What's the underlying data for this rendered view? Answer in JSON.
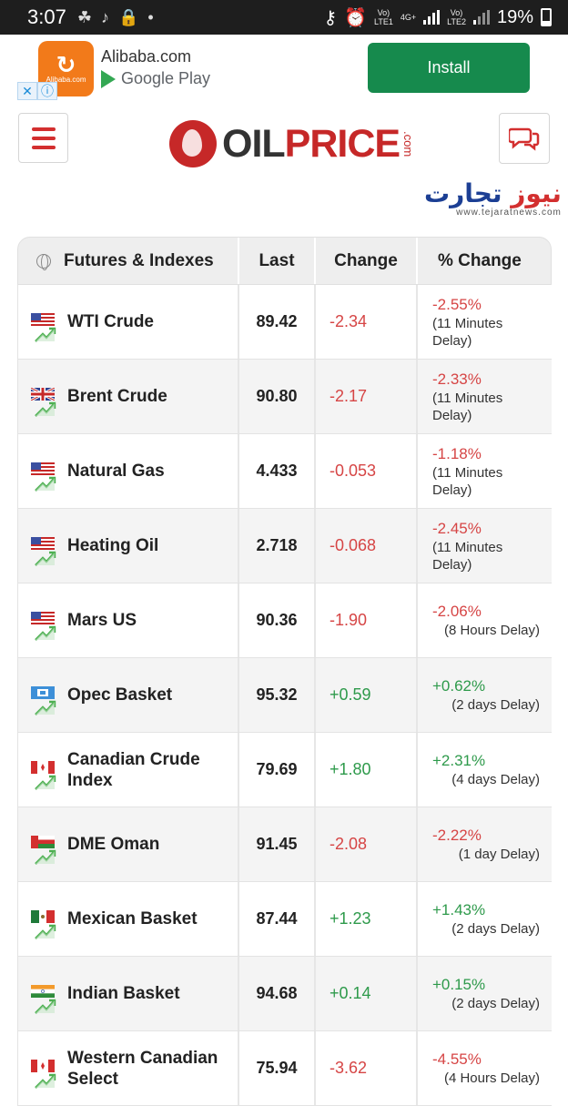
{
  "status_bar": {
    "time": "3:07",
    "battery": "19%",
    "net1": "Vo)\nLTE1",
    "net_type": "4G+",
    "net2": "Vo)\nLTE2"
  },
  "ad": {
    "app_name": "Alibaba.com",
    "store": "Google Play",
    "install_label": "Install",
    "logo_label": "Alibaba.com"
  },
  "header": {
    "logo_oil": "OIL",
    "logo_price": "PRICE",
    "logo_com": ".com",
    "watermark_fa": "تجارت",
    "watermark_fa_red": "نیوز",
    "watermark_site": "www.tejaratnews.com"
  },
  "table": {
    "headers": [
      "Futures & Indexes",
      "Last",
      "Change",
      "% Change"
    ],
    "rows": [
      {
        "name": "WTI Crude",
        "last": "89.42",
        "change": "-2.34",
        "pct": "-2.55%",
        "delay": "(11 Minutes Delay)",
        "flag": "us",
        "dir": "neg"
      },
      {
        "name": "Brent Crude",
        "last": "90.80",
        "change": "-2.17",
        "pct": "-2.33%",
        "delay": "(11 Minutes Delay)",
        "flag": "uk",
        "dir": "neg"
      },
      {
        "name": "Natural Gas",
        "last": "4.433",
        "change": "-0.053",
        "pct": "-1.18%",
        "delay": "(11 Minutes Delay)",
        "flag": "us",
        "dir": "neg"
      },
      {
        "name": "Heating Oil",
        "last": "2.718",
        "change": "-0.068",
        "pct": "-2.45%",
        "delay": "(11 Minutes Delay)",
        "flag": "us",
        "dir": "neg"
      },
      {
        "name": "Mars US",
        "last": "90.36",
        "change": "-1.90",
        "pct": "-2.06%",
        "delay": "(8 Hours Delay)",
        "flag": "us",
        "dir": "neg"
      },
      {
        "name": "Opec Basket",
        "last": "95.32",
        "change": "+0.59",
        "pct": "+0.62%",
        "delay": "(2 days Delay)",
        "flag": "opec",
        "dir": "pos"
      },
      {
        "name": "Canadian Crude Index",
        "last": "79.69",
        "change": "+1.80",
        "pct": "+2.31%",
        "delay": "(4 days Delay)",
        "flag": "ca",
        "dir": "pos"
      },
      {
        "name": "DME Oman",
        "last": "91.45",
        "change": "-2.08",
        "pct": "-2.22%",
        "delay": "(1 day Delay)",
        "flag": "om",
        "dir": "neg"
      },
      {
        "name": "Mexican Basket",
        "last": "87.44",
        "change": "+1.23",
        "pct": "+1.43%",
        "delay": "(2 days Delay)",
        "flag": "mx",
        "dir": "pos"
      },
      {
        "name": "Indian Basket",
        "last": "94.68",
        "change": "+0.14",
        "pct": "+0.15%",
        "delay": "(2 days Delay)",
        "flag": "in",
        "dir": "pos"
      },
      {
        "name": "Western Canadian Select",
        "last": "75.94",
        "change": "-3.62",
        "pct": "-4.55%",
        "delay": "(4 Hours Delay)",
        "flag": "ca",
        "dir": "neg"
      }
    ]
  },
  "colors": {
    "negative": "#d64545",
    "positive": "#2e9a4b",
    "brand_red": "#c62828",
    "install_green": "#168a4d"
  }
}
